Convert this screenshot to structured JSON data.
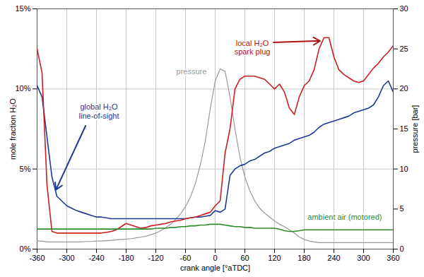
{
  "chart_data": {
    "type": "line",
    "xlabel": "crank angle [°aTDC]",
    "ylabel": "mole fraction H₂O",
    "y2label": "pressure [bar]",
    "xlim": [
      -360,
      360
    ],
    "xticks": [
      -360,
      -300,
      -240,
      -180,
      -120,
      -60,
      0,
      60,
      120,
      180,
      240,
      300,
      360
    ],
    "ylim": [
      0,
      15
    ],
    "yticks": [
      {
        "value": 0,
        "label": "0%"
      },
      {
        "value": 5,
        "label": "5%"
      },
      {
        "value": 10,
        "label": "10%"
      },
      {
        "value": 15,
        "label": "15%"
      }
    ],
    "y2lim": [
      0,
      30
    ],
    "y2ticks": [
      0,
      5,
      10,
      15,
      20,
      25,
      30
    ],
    "grid": true,
    "x": [
      -360,
      -350,
      -340,
      -330,
      -320,
      -310,
      -300,
      -290,
      -280,
      -270,
      -260,
      -250,
      -240,
      -230,
      -220,
      -210,
      -200,
      -190,
      -180,
      -170,
      -160,
      -150,
      -140,
      -130,
      -120,
      -110,
      -100,
      -90,
      -80,
      -70,
      -60,
      -50,
      -40,
      -30,
      -20,
      -10,
      0,
      10,
      20,
      30,
      40,
      50,
      60,
      70,
      80,
      90,
      100,
      110,
      120,
      130,
      140,
      150,
      160,
      170,
      180,
      190,
      200,
      210,
      220,
      230,
      240,
      250,
      260,
      270,
      280,
      290,
      300,
      310,
      320,
      330,
      340,
      350,
      360
    ],
    "series": [
      {
        "name": "global H₂O\nline-of-sight",
        "color": "#1f3a93",
        "values": [
          10.2,
          9.5,
          7.0,
          4.5,
          3.3,
          3.0,
          2.7,
          2.55,
          2.4,
          2.3,
          2.2,
          2.1,
          2.0,
          2.0,
          1.95,
          1.9,
          1.9,
          1.9,
          1.9,
          1.9,
          1.9,
          1.9,
          1.9,
          1.9,
          1.9,
          1.9,
          1.9,
          1.9,
          1.9,
          1.9,
          1.9,
          1.95,
          2.0,
          2.0,
          2.05,
          2.1,
          2.4,
          2.3,
          2.5,
          4.6,
          5.0,
          5.2,
          5.3,
          5.5,
          5.6,
          5.8,
          6.0,
          6.1,
          6.3,
          6.4,
          6.5,
          6.6,
          6.8,
          6.9,
          7.0,
          7.1,
          7.3,
          7.6,
          7.8,
          7.9,
          8.0,
          8.1,
          8.2,
          8.3,
          8.5,
          8.6,
          8.7,
          8.8,
          9.0,
          9.5,
          10.2,
          10.5,
          9.8
        ]
      },
      {
        "name": "local H₂O\nspark plug",
        "color": "#cc1f1f",
        "values": [
          12.5,
          11.0,
          4.0,
          1.1,
          1.0,
          1.0,
          1.0,
          1.0,
          1.0,
          1.0,
          1.0,
          1.0,
          1.0,
          1.0,
          1.05,
          1.1,
          1.2,
          1.4,
          1.6,
          1.5,
          1.4,
          1.3,
          1.35,
          1.45,
          1.5,
          1.55,
          1.6,
          1.7,
          1.75,
          1.8,
          1.9,
          1.95,
          2.0,
          2.1,
          2.2,
          2.3,
          2.7,
          3.0,
          6.0,
          7.5,
          10.0,
          10.6,
          10.8,
          10.8,
          10.8,
          10.7,
          10.6,
          10.3,
          10.0,
          10.3,
          9.8,
          8.8,
          8.4,
          9.5,
          10.2,
          10.5,
          11.2,
          12.5,
          13.2,
          13.2,
          12.0,
          11.2,
          10.9,
          10.7,
          10.5,
          10.4,
          10.5,
          10.9,
          11.3,
          11.6,
          12.0,
          12.3,
          12.7
        ]
      },
      {
        "name": "ambient air (motored)",
        "color": "#2e8b2e",
        "values": [
          1.25,
          1.25,
          1.25,
          1.25,
          1.25,
          1.25,
          1.25,
          1.25,
          1.25,
          1.25,
          1.25,
          1.25,
          1.25,
          1.25,
          1.25,
          1.25,
          1.25,
          1.25,
          1.25,
          1.25,
          1.25,
          1.25,
          1.25,
          1.25,
          1.3,
          1.3,
          1.3,
          1.35,
          1.35,
          1.4,
          1.4,
          1.45,
          1.45,
          1.5,
          1.5,
          1.55,
          1.55,
          1.55,
          1.5,
          1.45,
          1.4,
          1.4,
          1.35,
          1.35,
          1.3,
          1.3,
          1.3,
          1.3,
          1.3,
          1.25,
          1.15,
          1.1,
          1.1,
          1.15,
          1.2,
          1.2,
          1.2,
          1.2,
          1.2,
          1.2,
          1.2,
          1.2,
          1.2,
          1.2,
          1.2,
          1.2,
          1.2,
          1.2,
          1.2,
          1.2,
          1.2,
          1.2,
          1.2
        ]
      },
      {
        "name": "pressure",
        "color": "#999999",
        "axis": "y2",
        "values": [
          1.0,
          1.0,
          0.9,
          0.9,
          0.9,
          0.9,
          0.9,
          0.9,
          0.9,
          0.9,
          0.95,
          0.95,
          1.0,
          1.0,
          1.05,
          1.1,
          1.15,
          1.2,
          1.25,
          1.3,
          1.4,
          1.5,
          1.6,
          1.8,
          2.0,
          2.3,
          2.7,
          3.1,
          3.7,
          4.4,
          5.3,
          6.5,
          8.2,
          10.5,
          13.5,
          17.5,
          21.0,
          22.5,
          22.2,
          19.0,
          15.0,
          11.5,
          9.0,
          7.3,
          6.0,
          5.1,
          4.5,
          4.0,
          3.5,
          3.1,
          2.8,
          2.4,
          2.0,
          1.5,
          1.2,
          1.0,
          0.9,
          0.8,
          0.8,
          0.8,
          0.8,
          0.8,
          0.8,
          0.8,
          0.8,
          0.8,
          0.8,
          0.8,
          0.8,
          0.8,
          0.8,
          0.8,
          0.8
        ]
      }
    ]
  }
}
